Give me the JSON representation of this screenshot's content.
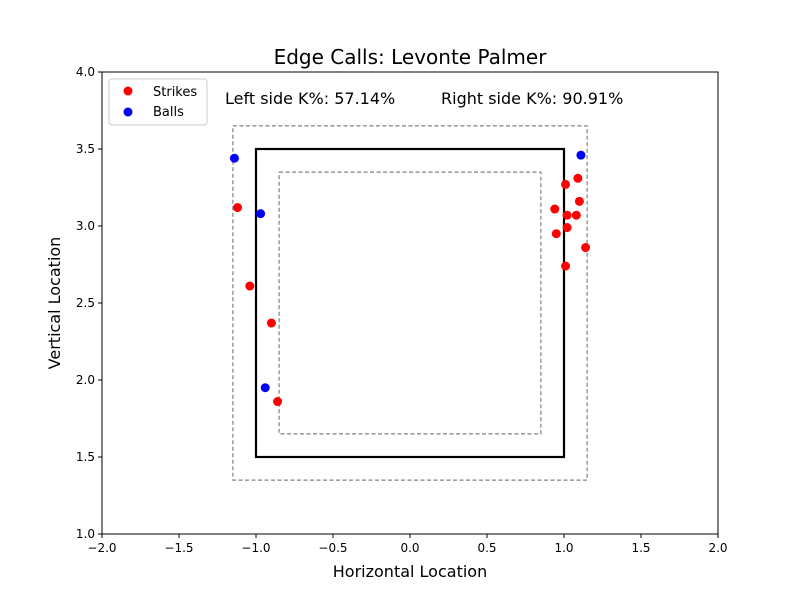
{
  "chart_data": {
    "type": "scatter",
    "title": "Edge Calls: Levonte Palmer",
    "xlabel": "Horizontal Location",
    "ylabel": "Vertical Location",
    "xlim": [
      -2.0,
      2.0
    ],
    "ylim": [
      1.0,
      4.0
    ],
    "x_ticks": [
      "−2.0",
      "−1.5",
      "−1.0",
      "−0.5",
      "0.0",
      "0.5",
      "1.0",
      "1.5",
      "2.0"
    ],
    "y_ticks": [
      "1.0",
      "1.5",
      "2.0",
      "2.5",
      "3.0",
      "3.5",
      "4.0"
    ],
    "legend_position": "top-left",
    "annotations": {
      "left": "Left side K%: 57.14%",
      "right": "Right side K%: 90.91%"
    },
    "zones": [
      {
        "role": "strike-zone",
        "x": [
          -1.0,
          1.0
        ],
        "y": [
          1.5,
          3.5
        ],
        "style": "solid"
      },
      {
        "role": "outer-edge",
        "x": [
          -1.15,
          1.15
        ],
        "y": [
          1.35,
          3.65
        ],
        "style": "dashed"
      },
      {
        "role": "inner-edge",
        "x": [
          -0.85,
          0.85
        ],
        "y": [
          1.65,
          3.35
        ],
        "style": "dashed"
      }
    ],
    "series": [
      {
        "name": "Strikes",
        "color": "#ff0000",
        "points": [
          [
            -1.12,
            3.12
          ],
          [
            -1.04,
            2.61
          ],
          [
            -0.9,
            2.37
          ],
          [
            -0.86,
            1.86
          ],
          [
            0.94,
            3.11
          ],
          [
            0.95,
            2.95
          ],
          [
            1.01,
            3.27
          ],
          [
            1.02,
            3.07
          ],
          [
            1.02,
            2.99
          ],
          [
            1.01,
            2.74
          ],
          [
            1.08,
            3.07
          ],
          [
            1.09,
            3.31
          ],
          [
            1.1,
            3.16
          ],
          [
            1.14,
            2.86
          ]
        ]
      },
      {
        "name": "Balls",
        "color": "#0000ff",
        "points": [
          [
            -1.14,
            3.44
          ],
          [
            -0.97,
            3.08
          ],
          [
            -0.94,
            1.95
          ],
          [
            1.11,
            3.46
          ]
        ]
      }
    ]
  }
}
